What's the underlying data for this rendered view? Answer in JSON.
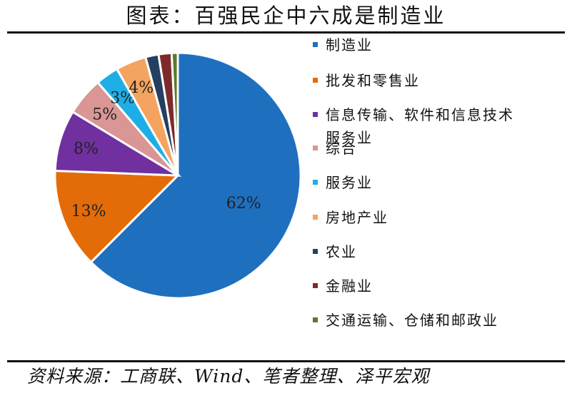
{
  "title": "图表：百强民企中六成是制造业",
  "source": "资料来源：工商联、Wind、笔者整理、泽平宏观",
  "chart_data": {
    "type": "pie",
    "categories": [
      "制造业",
      "批发和零售业",
      "信息传输、软件和信息技术服务业",
      "综合",
      "服务业",
      "房地产业",
      "农业",
      "金融业",
      "交通运输、仓储和邮政业"
    ],
    "values": [
      62,
      13,
      8,
      5,
      3,
      4,
      1.7,
      1.7,
      0.8
    ],
    "data_labels": [
      "62%",
      "13%",
      "8%",
      "5%",
      "3%",
      "4%",
      "",
      "",
      ""
    ],
    "colors": [
      "#1f6fbf",
      "#e36c09",
      "#7030a0",
      "#d99694",
      "#1eaee6",
      "#f4a460",
      "#243f60",
      "#7f2a2a",
      "#5a7a2a"
    ],
    "legend": {
      "position": "right",
      "items": [
        {
          "label": "制造业"
        },
        {
          "label": "批发和零售业"
        },
        {
          "label": "信息传输、软件和信息技术服务业",
          "lines": [
            "信息传输、软件和信息技术",
            "服务业"
          ]
        },
        {
          "label": "综合"
        },
        {
          "label": "服务业"
        },
        {
          "label": "房地产业"
        },
        {
          "label": "农业"
        },
        {
          "label": "金融业"
        },
        {
          "label": "交通运输、仓储和邮政业"
        }
      ]
    }
  }
}
